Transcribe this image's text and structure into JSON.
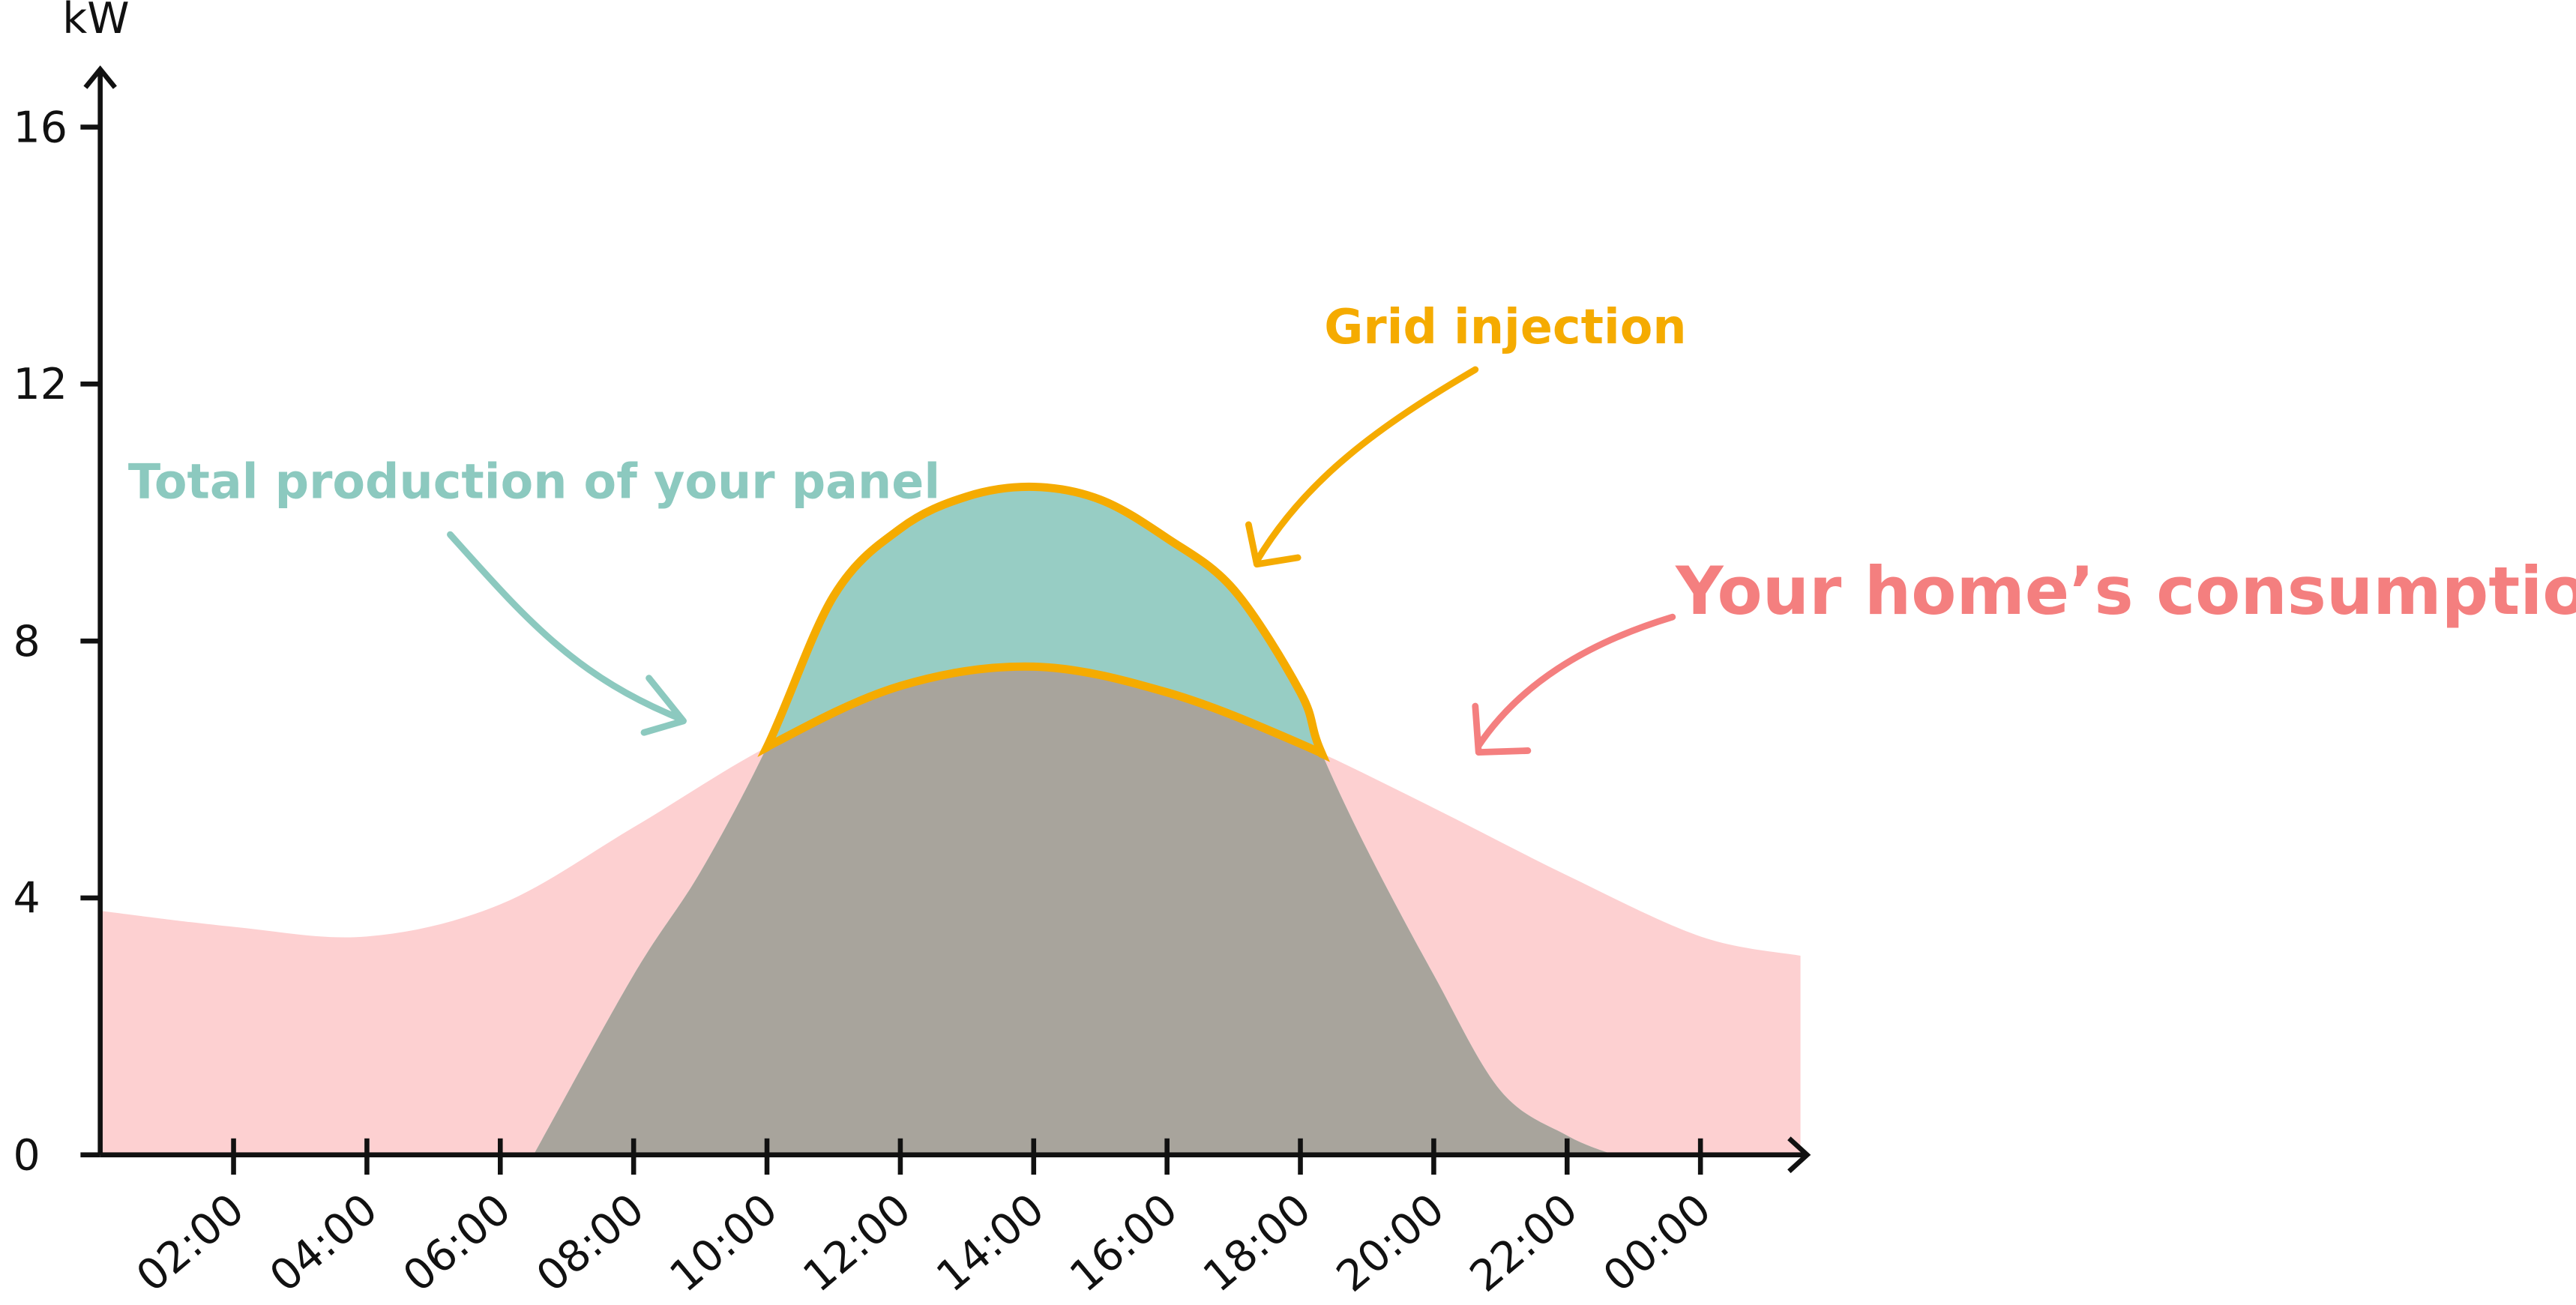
{
  "chart_data": {
    "type": "area",
    "y_label": "kW",
    "xlim": [
      0,
      25.6
    ],
    "ylim": [
      0,
      16.9
    ],
    "yticks": [
      0,
      4,
      8,
      12,
      16
    ],
    "xticks": [
      {
        "value": 2,
        "label": "02:00"
      },
      {
        "value": 4,
        "label": "04:00"
      },
      {
        "value": 6,
        "label": "06:00"
      },
      {
        "value": 8,
        "label": "08:00"
      },
      {
        "value": 10,
        "label": "10:00"
      },
      {
        "value": 12,
        "label": "12:00"
      },
      {
        "value": 14,
        "label": "14:00"
      },
      {
        "value": 16,
        "label": "16:00"
      },
      {
        "value": 18,
        "label": "18:00"
      },
      {
        "value": 20,
        "label": "20:00"
      },
      {
        "value": 22,
        "label": "22:00"
      },
      {
        "value": 24,
        "label": "00:00"
      }
    ],
    "series": [
      {
        "name": "Your home’s consumption",
        "color": "#fdd0d1",
        "label_color": "#f47f7f",
        "x": [
          0,
          2,
          4,
          6,
          8,
          10,
          12,
          14,
          16,
          18,
          20,
          22,
          24,
          25.5
        ],
        "values": [
          3.8,
          3.55,
          3.4,
          3.9,
          5.1,
          6.35,
          7.3,
          7.6,
          7.2,
          6.4,
          5.4,
          4.35,
          3.4,
          3.1
        ]
      },
      {
        "name": "Total production of your panel",
        "color": "#97cdc4",
        "label_color": "#8cc9bf",
        "x": [
          6.5,
          8,
          9,
          10,
          11,
          12,
          13,
          14,
          15,
          16,
          17,
          18,
          18.3,
          19,
          20,
          21,
          22,
          22.7
        ],
        "values": [
          0,
          2.8,
          4.4,
          6.35,
          8.7,
          9.75,
          10.25,
          10.4,
          10.2,
          9.6,
          8.8,
          7.2,
          6.3,
          4.75,
          2.8,
          1.0,
          0.3,
          0
        ]
      }
    ],
    "self_consumption_color": "#a8a49c",
    "injection": {
      "text": "Grid injection",
      "color": "#f5ab00"
    }
  }
}
